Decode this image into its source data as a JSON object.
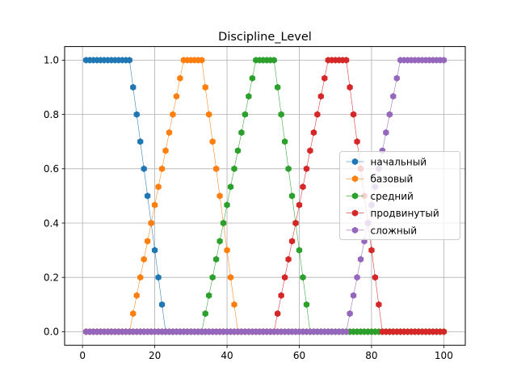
{
  "chart_data": {
    "type": "line",
    "title": "Discipline_Level",
    "xlabel": "",
    "ylabel": "",
    "xlim": [
      -4.95,
      105.95
    ],
    "ylim": [
      -0.05,
      1.05
    ],
    "xticks": [
      0,
      20,
      40,
      60,
      80,
      100
    ],
    "xtick_labels": [
      "0",
      "20",
      "40",
      "60",
      "80",
      "100"
    ],
    "yticks": [
      0.0,
      0.2,
      0.4,
      0.6,
      0.8,
      1.0
    ],
    "ytick_labels": [
      "0.0",
      "0.2",
      "0.4",
      "0.6",
      "0.8",
      "1.0"
    ],
    "grid": true,
    "legend_position": "center-right",
    "marker": "hexagon",
    "x": [
      1,
      2,
      3,
      4,
      5,
      6,
      7,
      8,
      9,
      10,
      11,
      12,
      13,
      14,
      15,
      16,
      17,
      18,
      19,
      20,
      21,
      22,
      23,
      24,
      25,
      26,
      27,
      28,
      29,
      30,
      31,
      32,
      33,
      34,
      35,
      36,
      37,
      38,
      39,
      40,
      41,
      42,
      43,
      44,
      45,
      46,
      47,
      48,
      49,
      50,
      51,
      52,
      53,
      54,
      55,
      56,
      57,
      58,
      59,
      60,
      61,
      62,
      63,
      64,
      65,
      66,
      67,
      68,
      69,
      70,
      71,
      72,
      73,
      74,
      75,
      76,
      77,
      78,
      79,
      80,
      81,
      82,
      83,
      84,
      85,
      86,
      87,
      88,
      89,
      90,
      91,
      92,
      93,
      94,
      95,
      96,
      97,
      98,
      99,
      100
    ],
    "series": [
      {
        "name": "начальный",
        "color": "#1f77b4",
        "values": [
          1,
          1,
          1,
          1,
          1,
          1,
          1,
          1,
          1,
          1,
          1,
          1,
          1,
          0.9,
          0.8,
          0.7,
          0.6,
          0.5,
          0.4,
          0.3,
          0.2,
          0.1,
          0,
          0,
          0,
          0,
          0,
          0,
          0,
          0,
          0,
          0,
          0,
          0,
          0,
          0,
          0,
          0,
          0,
          0,
          0,
          0,
          0,
          0,
          0,
          0,
          0,
          0,
          0,
          0,
          0,
          0,
          0,
          0,
          0,
          0,
          0,
          0,
          0,
          0,
          0,
          0,
          0,
          0,
          0,
          0,
          0,
          0,
          0,
          0,
          0,
          0,
          0,
          0,
          0,
          0,
          0,
          0,
          0,
          0,
          0,
          0,
          0,
          0,
          0,
          0,
          0,
          0,
          0,
          0,
          0,
          0,
          0,
          0,
          0,
          0,
          0,
          0,
          0,
          0
        ]
      },
      {
        "name": "базовый",
        "color": "#ff7f0e",
        "values": [
          0,
          0,
          0,
          0,
          0,
          0,
          0,
          0,
          0,
          0,
          0,
          0,
          0,
          0.0667,
          0.1333,
          0.2,
          0.2667,
          0.3333,
          0.4,
          0.4667,
          0.5333,
          0.6,
          0.6667,
          0.7333,
          0.8,
          0.8667,
          0.9333,
          1,
          1,
          1,
          1,
          1,
          1,
          0.9,
          0.8,
          0.7,
          0.6,
          0.5,
          0.4,
          0.3,
          0.2,
          0.1,
          0,
          0,
          0,
          0,
          0,
          0,
          0,
          0,
          0,
          0,
          0,
          0,
          0,
          0,
          0,
          0,
          0,
          0,
          0,
          0,
          0,
          0,
          0,
          0,
          0,
          0,
          0,
          0,
          0,
          0,
          0,
          0,
          0,
          0,
          0,
          0,
          0,
          0,
          0,
          0,
          0,
          0,
          0,
          0,
          0,
          0,
          0,
          0,
          0,
          0,
          0,
          0,
          0,
          0,
          0,
          0,
          0,
          0
        ]
      },
      {
        "name": "средний",
        "color": "#2ca02c",
        "values": [
          0,
          0,
          0,
          0,
          0,
          0,
          0,
          0,
          0,
          0,
          0,
          0,
          0,
          0,
          0,
          0,
          0,
          0,
          0,
          0,
          0,
          0,
          0,
          0,
          0,
          0,
          0,
          0,
          0,
          0,
          0,
          0,
          0,
          0.0667,
          0.1333,
          0.2,
          0.2667,
          0.3333,
          0.4,
          0.4667,
          0.5333,
          0.6,
          0.6667,
          0.7333,
          0.8,
          0.8667,
          0.9333,
          1,
          1,
          1,
          1,
          1,
          1,
          0.9,
          0.8,
          0.7,
          0.6,
          0.5,
          0.4,
          0.3,
          0.2,
          0.1,
          0,
          0,
          0,
          0,
          0,
          0,
          0,
          0,
          0,
          0,
          0,
          0,
          0,
          0,
          0,
          0,
          0,
          0,
          0,
          0,
          0,
          0,
          0,
          0,
          0,
          0,
          0,
          0,
          0,
          0,
          0,
          0,
          0,
          0,
          0,
          0,
          0,
          0
        ]
      },
      {
        "name": "продвинутый",
        "color": "#d62728",
        "values": [
          0,
          0,
          0,
          0,
          0,
          0,
          0,
          0,
          0,
          0,
          0,
          0,
          0,
          0,
          0,
          0,
          0,
          0,
          0,
          0,
          0,
          0,
          0,
          0,
          0,
          0,
          0,
          0,
          0,
          0,
          0,
          0,
          0,
          0,
          0,
          0,
          0,
          0,
          0,
          0,
          0,
          0,
          0,
          0,
          0,
          0,
          0,
          0,
          0,
          0,
          0,
          0,
          0,
          0.0667,
          0.1333,
          0.2,
          0.2667,
          0.3333,
          0.4,
          0.4667,
          0.5333,
          0.6,
          0.6667,
          0.7333,
          0.8,
          0.8667,
          0.9333,
          1,
          1,
          1,
          1,
          1,
          1,
          0.9,
          0.8,
          0.7,
          0.6,
          0.5,
          0.4,
          0.3,
          0.2,
          0.1,
          0,
          0,
          0,
          0,
          0,
          0,
          0,
          0,
          0,
          0,
          0,
          0,
          0,
          0,
          0,
          0,
          0,
          0
        ]
      },
      {
        "name": "сложный",
        "color": "#9467bd",
        "values": [
          0,
          0,
          0,
          0,
          0,
          0,
          0,
          0,
          0,
          0,
          0,
          0,
          0,
          0,
          0,
          0,
          0,
          0,
          0,
          0,
          0,
          0,
          0,
          0,
          0,
          0,
          0,
          0,
          0,
          0,
          0,
          0,
          0,
          0,
          0,
          0,
          0,
          0,
          0,
          0,
          0,
          0,
          0,
          0,
          0,
          0,
          0,
          0,
          0,
          0,
          0,
          0,
          0,
          0,
          0,
          0,
          0,
          0,
          0,
          0,
          0,
          0,
          0,
          0,
          0,
          0,
          0,
          0,
          0,
          0,
          0,
          0,
          0,
          0.0667,
          0.1333,
          0.2,
          0.2667,
          0.3333,
          0.4,
          0.4667,
          0.5333,
          0.6,
          0.6667,
          0.7333,
          0.8,
          0.8667,
          0.9333,
          1,
          1,
          1,
          1,
          1,
          1,
          1,
          1,
          1,
          1,
          1,
          1,
          1
        ]
      }
    ]
  }
}
